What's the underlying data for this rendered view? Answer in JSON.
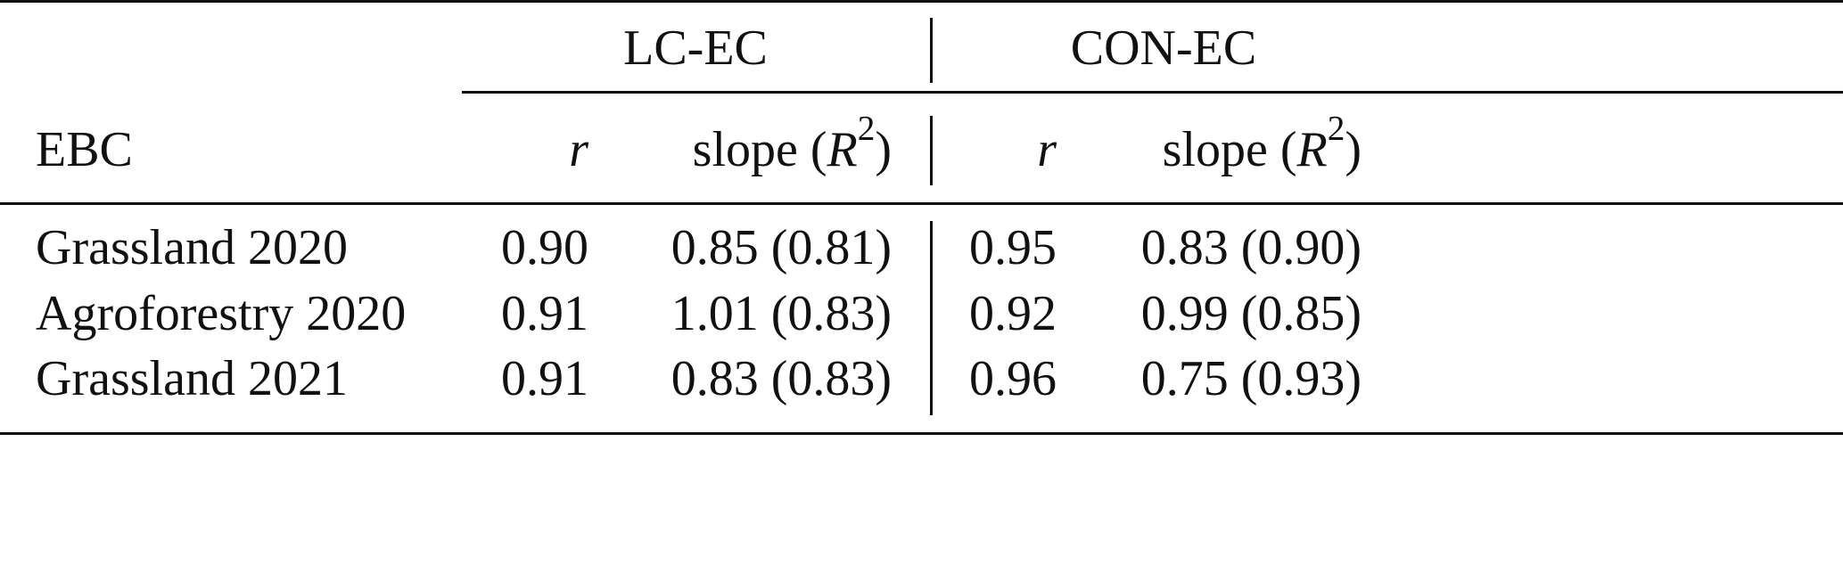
{
  "table": {
    "group_headers": [
      "LC-EC",
      "CON-EC"
    ],
    "columns": [
      [
        "EBC"
      ],
      [
        "r"
      ],
      [
        "slope (",
        "R",
        "2",
        ")"
      ],
      [
        "r"
      ],
      [
        "slope (",
        "R",
        "2",
        ")"
      ]
    ],
    "rows": [
      [
        "Grassland 2020",
        "0.90",
        "0.85 (0.81)",
        "0.95",
        "0.83 (0.90)"
      ],
      [
        "Agroforestry 2020",
        "0.91",
        "1.01 (0.83)",
        "0.92",
        "0.99 (0.85)"
      ],
      [
        "Grassland 2021",
        "0.91",
        "0.83 (0.83)",
        "0.96",
        "0.75 (0.93)"
      ]
    ]
  }
}
